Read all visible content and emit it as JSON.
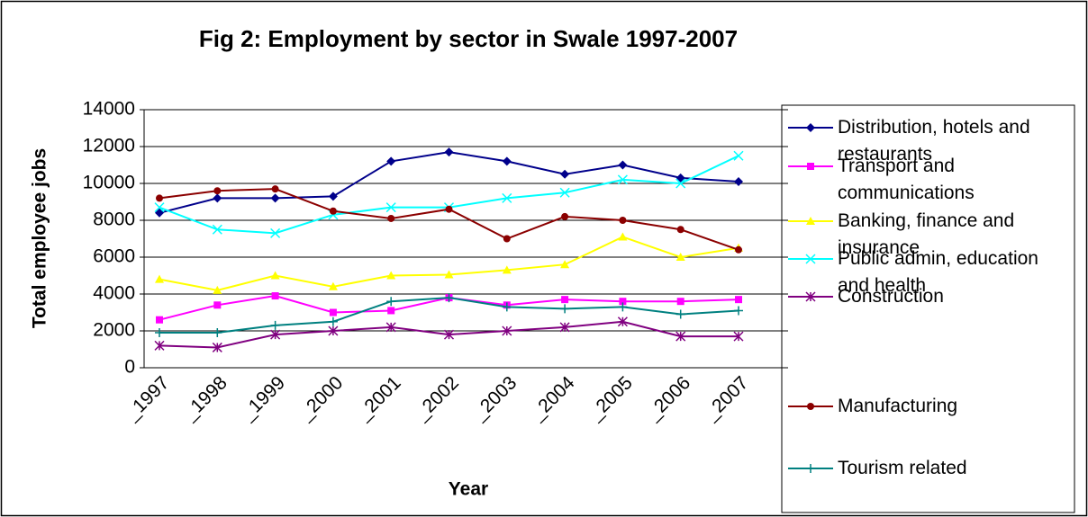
{
  "chart_data": {
    "type": "line",
    "title": "Fig 2: Employment by sector in Swale 1997-2007",
    "x_label": "Year",
    "y_label": "Total employee jobs",
    "categories": [
      "_1997",
      "_1998",
      "_1999",
      "_2000",
      "_2001",
      "_2002",
      "_2003",
      "_2004",
      "_2005",
      "_2006",
      "_2007"
    ],
    "ylim": [
      0,
      14000
    ],
    "yticks": [
      0,
      2000,
      4000,
      6000,
      8000,
      10000,
      12000,
      14000
    ],
    "grid": true,
    "legend": "right",
    "series": [
      {
        "name": "Distribution, hotels and restaurants",
        "color": "#00008b",
        "marker": "diamond",
        "values": [
          8400,
          9200,
          9200,
          9300,
          11200,
          11700,
          11200,
          10500,
          11000,
          10300,
          10100
        ]
      },
      {
        "name": "Transport and communications",
        "color": "#ff00ff",
        "marker": "square",
        "values": [
          2600,
          3400,
          3900,
          3000,
          3100,
          3800,
          3400,
          3700,
          3600,
          3600,
          3700
        ]
      },
      {
        "name": "Banking, finance and insurance",
        "color": "#ffff00",
        "marker": "triangle",
        "values": [
          4800,
          4200,
          5000,
          4400,
          5000,
          5050,
          5300,
          5600,
          7100,
          6000,
          6500
        ]
      },
      {
        "name": "Public admin, education and health",
        "color": "#00ffff",
        "marker": "x",
        "values": [
          8700,
          7500,
          7300,
          8300,
          8700,
          8700,
          9200,
          9500,
          10200,
          10000,
          11500
        ]
      },
      {
        "name": "Construction",
        "color": "#800080",
        "marker": "star",
        "values": [
          1200,
          1100,
          1800,
          2000,
          2200,
          1800,
          2000,
          2200,
          2500,
          1700,
          1700
        ]
      },
      {
        "name": "Manufacturing",
        "color": "#8b0000",
        "marker": "circle",
        "values": [
          9200,
          9600,
          9700,
          8500,
          8100,
          8600,
          7000,
          8200,
          8000,
          7500,
          6400
        ]
      },
      {
        "name": "Tourism related",
        "color": "#008080",
        "marker": "plus",
        "values": [
          1900,
          1900,
          2300,
          2500,
          3600,
          3800,
          3300,
          3200,
          3300,
          2900,
          3100
        ]
      }
    ]
  }
}
